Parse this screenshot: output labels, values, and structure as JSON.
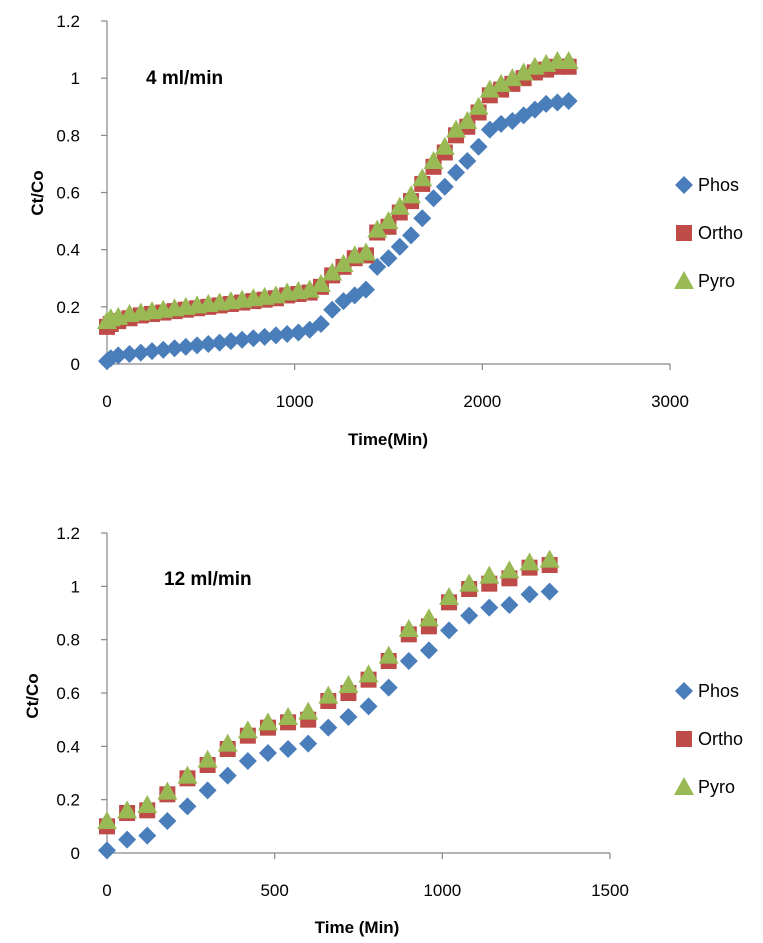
{
  "chart_data": [
    {
      "type": "scatter",
      "annotation": "4 ml/min",
      "xlabel": "Time(Min)",
      "ylabel": "Ct/Co",
      "xlim": [
        0,
        3000
      ],
      "ylim": [
        0,
        1.2
      ],
      "xticks": [
        "0",
        "1000",
        "2000",
        "3000"
      ],
      "yticks": [
        "0",
        "0.2",
        "0.4",
        "0.6",
        "0.8",
        "1",
        "1.2"
      ],
      "legend_position": "right",
      "series": [
        {
          "name": "Phos",
          "color": "#4a7ebb",
          "marker": "diamond",
          "x": [
            0,
            20,
            60,
            120,
            180,
            240,
            300,
            360,
            420,
            480,
            540,
            600,
            660,
            720,
            780,
            840,
            900,
            960,
            1020,
            1080,
            1140,
            1200,
            1260,
            1320,
            1380,
            1440,
            1500,
            1560,
            1620,
            1680,
            1740,
            1800,
            1860,
            1920,
            1980,
            2040,
            2100,
            2160,
            2220,
            2280,
            2340,
            2400,
            2460
          ],
          "y": [
            0.01,
            0.02,
            0.03,
            0.035,
            0.04,
            0.045,
            0.05,
            0.055,
            0.06,
            0.065,
            0.07,
            0.075,
            0.08,
            0.085,
            0.09,
            0.095,
            0.1,
            0.105,
            0.11,
            0.12,
            0.14,
            0.19,
            0.22,
            0.24,
            0.26,
            0.34,
            0.37,
            0.41,
            0.45,
            0.51,
            0.58,
            0.62,
            0.67,
            0.71,
            0.76,
            0.82,
            0.84,
            0.85,
            0.87,
            0.89,
            0.91,
            0.915,
            0.92
          ]
        },
        {
          "name": "Ortho",
          "color": "#be4b48",
          "marker": "square",
          "x": [
            0,
            20,
            60,
            120,
            180,
            240,
            300,
            360,
            420,
            480,
            540,
            600,
            660,
            720,
            780,
            840,
            900,
            960,
            1020,
            1080,
            1140,
            1200,
            1260,
            1320,
            1380,
            1440,
            1500,
            1560,
            1620,
            1680,
            1740,
            1800,
            1860,
            1920,
            1980,
            2040,
            2100,
            2160,
            2220,
            2280,
            2340,
            2400,
            2460
          ],
          "y": [
            0.13,
            0.14,
            0.15,
            0.16,
            0.17,
            0.175,
            0.18,
            0.185,
            0.19,
            0.195,
            0.2,
            0.205,
            0.21,
            0.215,
            0.22,
            0.225,
            0.23,
            0.24,
            0.245,
            0.25,
            0.27,
            0.31,
            0.34,
            0.37,
            0.38,
            0.46,
            0.48,
            0.53,
            0.57,
            0.63,
            0.69,
            0.74,
            0.8,
            0.83,
            0.88,
            0.94,
            0.96,
            0.98,
            1.0,
            1.02,
            1.03,
            1.04,
            1.04
          ]
        },
        {
          "name": "Pyro",
          "color": "#98b954",
          "marker": "triangle",
          "x": [
            0,
            20,
            60,
            120,
            180,
            240,
            300,
            360,
            420,
            480,
            540,
            600,
            660,
            720,
            780,
            840,
            900,
            960,
            1020,
            1080,
            1140,
            1200,
            1260,
            1320,
            1380,
            1440,
            1500,
            1560,
            1620,
            1680,
            1740,
            1800,
            1860,
            1920,
            1980,
            2040,
            2100,
            2160,
            2220,
            2280,
            2340,
            2400,
            2460
          ],
          "y": [
            0.15,
            0.16,
            0.165,
            0.175,
            0.18,
            0.185,
            0.19,
            0.195,
            0.2,
            0.205,
            0.21,
            0.215,
            0.22,
            0.225,
            0.23,
            0.235,
            0.24,
            0.25,
            0.255,
            0.26,
            0.28,
            0.32,
            0.35,
            0.38,
            0.39,
            0.47,
            0.5,
            0.55,
            0.59,
            0.65,
            0.71,
            0.76,
            0.82,
            0.85,
            0.9,
            0.96,
            0.98,
            1.0,
            1.02,
            1.04,
            1.05,
            1.06,
            1.06
          ]
        }
      ]
    },
    {
      "type": "scatter",
      "annotation": "12 ml/min",
      "xlabel": "Time (Min)",
      "ylabel": "Ct/Co",
      "xlim": [
        0,
        1500
      ],
      "ylim": [
        0,
        1.2
      ],
      "xticks": [
        "0",
        "500",
        "1000",
        "1500"
      ],
      "yticks": [
        "0",
        "0.2",
        "0.4",
        "0.6",
        "0.8",
        "1",
        "1.2"
      ],
      "legend_position": "right",
      "series": [
        {
          "name": "Phos",
          "color": "#4a7ebb",
          "marker": "diamond",
          "x": [
            0,
            60,
            120,
            180,
            240,
            300,
            360,
            420,
            480,
            540,
            600,
            660,
            720,
            780,
            840,
            900,
            960,
            1020,
            1080,
            1140,
            1200,
            1260,
            1320
          ],
          "y": [
            0.01,
            0.05,
            0.065,
            0.12,
            0.175,
            0.235,
            0.29,
            0.345,
            0.375,
            0.39,
            0.41,
            0.47,
            0.51,
            0.55,
            0.62,
            0.72,
            0.76,
            0.835,
            0.89,
            0.92,
            0.93,
            0.97,
            0.98
          ]
        },
        {
          "name": "Ortho",
          "color": "#be4b48",
          "marker": "square",
          "x": [
            0,
            60,
            120,
            180,
            240,
            300,
            360,
            420,
            480,
            540,
            600,
            660,
            720,
            780,
            840,
            900,
            960,
            1020,
            1080,
            1140,
            1200,
            1260,
            1320
          ],
          "y": [
            0.1,
            0.15,
            0.16,
            0.22,
            0.28,
            0.33,
            0.39,
            0.44,
            0.47,
            0.49,
            0.5,
            0.57,
            0.6,
            0.65,
            0.72,
            0.82,
            0.85,
            0.94,
            0.99,
            1.01,
            1.03,
            1.07,
            1.08
          ]
        },
        {
          "name": "Pyro",
          "color": "#98b954",
          "marker": "triangle",
          "x": [
            0,
            60,
            120,
            180,
            240,
            300,
            360,
            420,
            480,
            540,
            600,
            660,
            720,
            780,
            840,
            900,
            960,
            1020,
            1080,
            1140,
            1200,
            1260,
            1320
          ],
          "y": [
            0.12,
            0.16,
            0.18,
            0.23,
            0.29,
            0.35,
            0.41,
            0.46,
            0.49,
            0.51,
            0.53,
            0.59,
            0.63,
            0.67,
            0.74,
            0.84,
            0.88,
            0.96,
            1.01,
            1.04,
            1.06,
            1.09,
            1.1
          ]
        }
      ]
    }
  ]
}
